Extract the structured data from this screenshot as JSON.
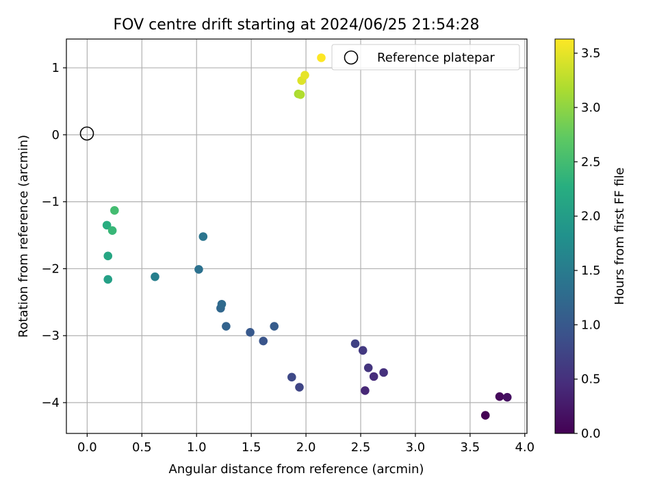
{
  "chart_data": {
    "type": "scatter",
    "title": "FOV centre drift starting at 2024/06/25 21:54:28",
    "xlabel": "Angular distance from reference (arcmin)",
    "ylabel": "Rotation from reference (arcmin)",
    "xlim": [
      -0.19,
      4.02
    ],
    "ylim": [
      -4.46,
      1.43
    ],
    "xticks": [
      0.0,
      0.5,
      1.0,
      1.5,
      2.0,
      2.5,
      3.0,
      3.5,
      4.0
    ],
    "xtick_labels": [
      "0.0",
      "0.5",
      "1.0",
      "1.5",
      "2.0",
      "2.5",
      "3.0",
      "3.5",
      "4.0"
    ],
    "yticks": [
      -4,
      -3,
      -2,
      -1,
      0,
      1
    ],
    "ytick_labels": [
      "−4",
      "−3",
      "−2",
      "−1",
      "0",
      "1"
    ],
    "grid": true,
    "legend": {
      "position": "top-right",
      "entries": [
        "Reference platepar"
      ]
    },
    "reference_point": {
      "name": "Reference platepar",
      "x": 0.0,
      "y": 0.0
    },
    "colorbar": {
      "label": "Hours from first FF file",
      "colormap": "viridis",
      "range": [
        0.0,
        3.63
      ],
      "ticks": [
        0.0,
        0.5,
        1.0,
        1.5,
        2.0,
        2.5,
        3.0,
        3.5
      ],
      "tick_labels": [
        "0.0",
        "0.5",
        "1.0",
        "1.5",
        "2.0",
        "2.5",
        "3.0",
        "3.5"
      ]
    },
    "points": [
      {
        "x": 3.64,
        "y": -4.19,
        "c": 0.0
      },
      {
        "x": 3.77,
        "y": -3.91,
        "c": 0.08
      },
      {
        "x": 3.84,
        "y": -3.92,
        "c": 0.15
      },
      {
        "x": 2.54,
        "y": -3.82,
        "c": 0.4
      },
      {
        "x": 2.62,
        "y": -3.61,
        "c": 0.45
      },
      {
        "x": 2.71,
        "y": -3.55,
        "c": 0.5
      },
      {
        "x": 2.57,
        "y": -3.48,
        "c": 0.55
      },
      {
        "x": 2.52,
        "y": -3.22,
        "c": 0.6
      },
      {
        "x": 2.45,
        "y": -3.12,
        "c": 0.7
      },
      {
        "x": 1.94,
        "y": -3.77,
        "c": 0.75
      },
      {
        "x": 1.87,
        "y": -3.62,
        "c": 0.8
      },
      {
        "x": 1.61,
        "y": -3.08,
        "c": 0.95
      },
      {
        "x": 1.49,
        "y": -2.95,
        "c": 1.0
      },
      {
        "x": 1.71,
        "y": -2.86,
        "c": 1.05
      },
      {
        "x": 1.27,
        "y": -2.86,
        "c": 1.15
      },
      {
        "x": 1.22,
        "y": -2.59,
        "c": 1.2
      },
      {
        "x": 1.23,
        "y": -2.53,
        "c": 1.25
      },
      {
        "x": 1.02,
        "y": -2.01,
        "c": 1.35
      },
      {
        "x": 1.06,
        "y": -1.52,
        "c": 1.4
      },
      {
        "x": 0.62,
        "y": -2.12,
        "c": 1.55
      },
      {
        "x": 0.19,
        "y": -2.16,
        "c": 2.05
      },
      {
        "x": 0.19,
        "y": -1.81,
        "c": 2.15
      },
      {
        "x": 0.18,
        "y": -1.35,
        "c": 2.25
      },
      {
        "x": 0.23,
        "y": -1.43,
        "c": 2.4
      },
      {
        "x": 0.25,
        "y": -1.13,
        "c": 2.5
      },
      {
        "x": 1.93,
        "y": 0.61,
        "c": 3.15
      },
      {
        "x": 1.95,
        "y": 0.6,
        "c": 3.2
      },
      {
        "x": 1.96,
        "y": 0.81,
        "c": 3.45
      },
      {
        "x": 1.99,
        "y": 0.89,
        "c": 3.5
      },
      {
        "x": 2.14,
        "y": 1.15,
        "c": 3.63
      }
    ]
  }
}
